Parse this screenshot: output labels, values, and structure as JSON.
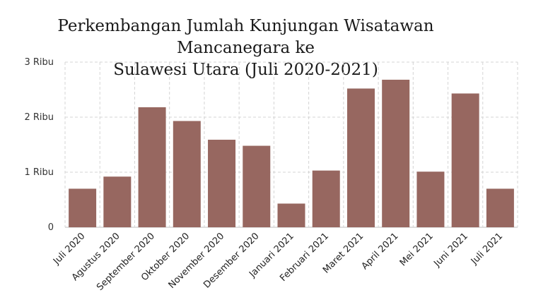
{
  "chart_data": {
    "type": "bar",
    "title_line1": "Perkembangan Jumlah Kunjungan Wisatawan Mancanegara ke",
    "title_line2": "Sulawesi Utara (Juli 2020-2021)",
    "xlabel": "",
    "ylabel": "",
    "categories": [
      "Juli 2020",
      "Agustus 2020",
      "September 2020",
      "Oktober 2020",
      "November 2020",
      "Desember 2020",
      "Januari 2021",
      "Februari 2021",
      "Maret 2021",
      "April 2021",
      "Mei 2021",
      "Juni 2021",
      "Juli 2021"
    ],
    "values": [
      700,
      920,
      2180,
      1930,
      1590,
      1480,
      430,
      1030,
      2520,
      2680,
      1010,
      2430,
      700
    ],
    "ylim": [
      0,
      3000
    ],
    "yticks": [
      0,
      1000,
      2000,
      3000
    ],
    "ytick_labels": [
      "0",
      "1 Ribu",
      "2 Ribu",
      "3 Ribu"
    ],
    "grid": true,
    "bar_color": "#976760"
  }
}
